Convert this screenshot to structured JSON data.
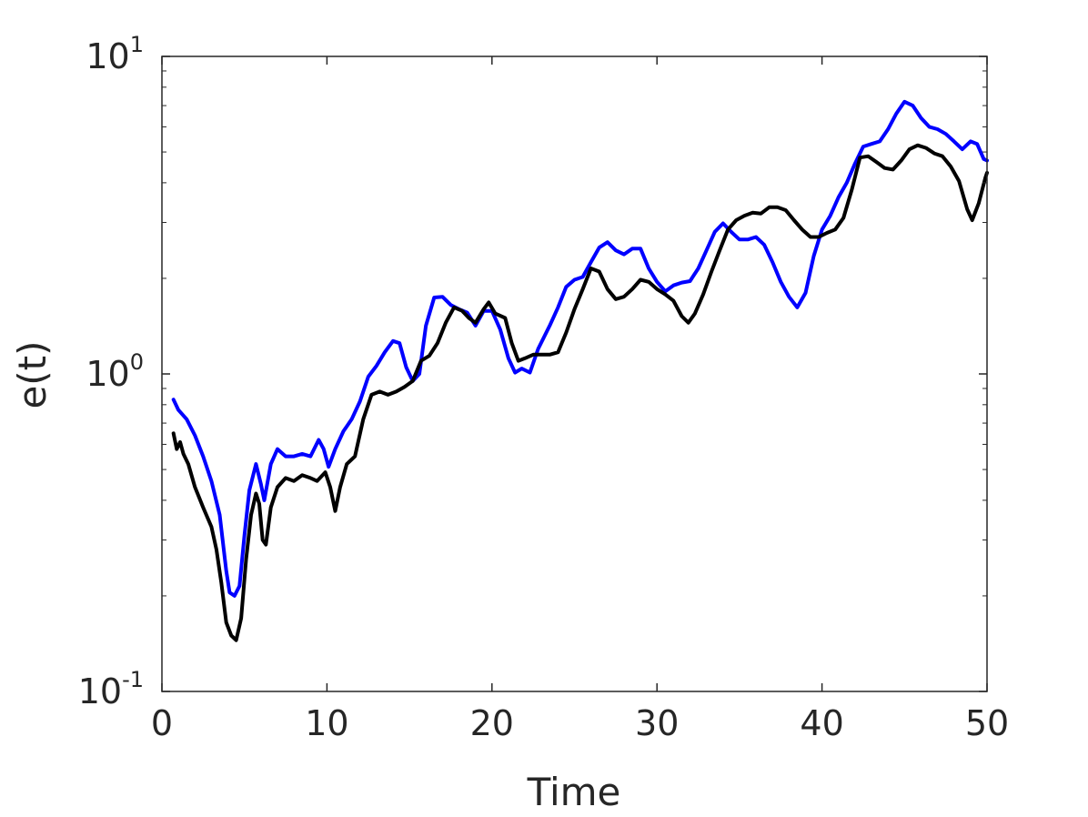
{
  "chart_data": {
    "type": "line",
    "title": "",
    "xlabel": "Time",
    "ylabel": "e(t)",
    "xlim": [
      0,
      50
    ],
    "ylim": [
      0.1,
      10
    ],
    "yscale": "log",
    "grid": false,
    "box": true,
    "x_ticks": [
      {
        "value": 0,
        "label": "0"
      },
      {
        "value": 10,
        "label": "10"
      },
      {
        "value": 20,
        "label": "20"
      },
      {
        "value": 30,
        "label": "30"
      },
      {
        "value": 40,
        "label": "40"
      },
      {
        "value": 50,
        "label": "50"
      }
    ],
    "y_ticks": [
      {
        "value": 0.1,
        "base": "10",
        "exp": "-1"
      },
      {
        "value": 1,
        "base": "10",
        "exp": "0"
      },
      {
        "value": 10,
        "base": "10",
        "exp": "1"
      }
    ],
    "series": [
      {
        "color": "#0000ff",
        "points": [
          [
            0.7,
            0.83
          ],
          [
            1.0,
            0.77
          ],
          [
            1.5,
            0.72
          ],
          [
            2.0,
            0.64
          ],
          [
            2.5,
            0.55
          ],
          [
            3.0,
            0.46
          ],
          [
            3.5,
            0.36
          ],
          [
            3.9,
            0.24
          ],
          [
            4.1,
            0.205
          ],
          [
            4.4,
            0.2
          ],
          [
            4.7,
            0.215
          ],
          [
            5.0,
            0.31
          ],
          [
            5.3,
            0.43
          ],
          [
            5.7,
            0.52
          ],
          [
            6.0,
            0.45
          ],
          [
            6.2,
            0.4
          ],
          [
            6.6,
            0.52
          ],
          [
            7.0,
            0.58
          ],
          [
            7.5,
            0.55
          ],
          [
            8.0,
            0.55
          ],
          [
            8.5,
            0.56
          ],
          [
            9.0,
            0.55
          ],
          [
            9.5,
            0.62
          ],
          [
            9.8,
            0.58
          ],
          [
            10.1,
            0.51
          ],
          [
            10.5,
            0.58
          ],
          [
            11.0,
            0.66
          ],
          [
            11.5,
            0.72
          ],
          [
            12.0,
            0.82
          ],
          [
            12.5,
            0.98
          ],
          [
            13.0,
            1.06
          ],
          [
            13.5,
            1.17
          ],
          [
            14.0,
            1.27
          ],
          [
            14.4,
            1.25
          ],
          [
            14.8,
            1.05
          ],
          [
            15.2,
            0.95
          ],
          [
            15.6,
            1.0
          ],
          [
            16.0,
            1.42
          ],
          [
            16.5,
            1.74
          ],
          [
            17.0,
            1.75
          ],
          [
            17.5,
            1.65
          ],
          [
            18.0,
            1.6
          ],
          [
            18.5,
            1.56
          ],
          [
            19.0,
            1.42
          ],
          [
            19.5,
            1.58
          ],
          [
            20.0,
            1.58
          ],
          [
            20.5,
            1.38
          ],
          [
            21.0,
            1.12
          ],
          [
            21.4,
            1.01
          ],
          [
            21.8,
            1.04
          ],
          [
            22.3,
            1.01
          ],
          [
            22.8,
            1.2
          ],
          [
            23.5,
            1.42
          ],
          [
            24.0,
            1.62
          ],
          [
            24.5,
            1.88
          ],
          [
            25.0,
            1.98
          ],
          [
            25.5,
            2.02
          ],
          [
            26.0,
            2.25
          ],
          [
            26.5,
            2.5
          ],
          [
            27.0,
            2.6
          ],
          [
            27.5,
            2.45
          ],
          [
            28.0,
            2.38
          ],
          [
            28.5,
            2.48
          ],
          [
            29.0,
            2.48
          ],
          [
            29.5,
            2.15
          ],
          [
            30.0,
            1.95
          ],
          [
            30.5,
            1.82
          ],
          [
            31.0,
            1.9
          ],
          [
            31.5,
            1.94
          ],
          [
            32.0,
            1.96
          ],
          [
            32.5,
            2.15
          ],
          [
            33.0,
            2.45
          ],
          [
            33.5,
            2.8
          ],
          [
            34.0,
            2.98
          ],
          [
            34.5,
            2.8
          ],
          [
            35.0,
            2.65
          ],
          [
            35.5,
            2.65
          ],
          [
            36.0,
            2.7
          ],
          [
            36.5,
            2.55
          ],
          [
            37.0,
            2.25
          ],
          [
            37.5,
            1.95
          ],
          [
            38.0,
            1.75
          ],
          [
            38.5,
            1.62
          ],
          [
            39.0,
            1.8
          ],
          [
            39.5,
            2.35
          ],
          [
            40.0,
            2.85
          ],
          [
            40.5,
            3.15
          ],
          [
            41.0,
            3.6
          ],
          [
            41.5,
            4.0
          ],
          [
            42.0,
            4.6
          ],
          [
            42.5,
            5.2
          ],
          [
            43.0,
            5.3
          ],
          [
            43.5,
            5.4
          ],
          [
            44.0,
            5.9
          ],
          [
            44.5,
            6.6
          ],
          [
            45.0,
            7.2
          ],
          [
            45.5,
            7.0
          ],
          [
            46.0,
            6.4
          ],
          [
            46.5,
            6.0
          ],
          [
            47.0,
            5.9
          ],
          [
            47.5,
            5.7
          ],
          [
            48.0,
            5.4
          ],
          [
            48.5,
            5.1
          ],
          [
            49.0,
            5.4
          ],
          [
            49.4,
            5.3
          ],
          [
            49.8,
            4.75
          ],
          [
            50.0,
            4.7
          ]
        ]
      },
      {
        "color": "#000000",
        "points": [
          [
            0.7,
            0.65
          ],
          [
            0.9,
            0.58
          ],
          [
            1.1,
            0.61
          ],
          [
            1.3,
            0.56
          ],
          [
            1.6,
            0.52
          ],
          [
            2.0,
            0.44
          ],
          [
            2.5,
            0.38
          ],
          [
            3.0,
            0.33
          ],
          [
            3.3,
            0.28
          ],
          [
            3.6,
            0.22
          ],
          [
            3.9,
            0.165
          ],
          [
            4.2,
            0.15
          ],
          [
            4.5,
            0.145
          ],
          [
            4.8,
            0.17
          ],
          [
            5.1,
            0.26
          ],
          [
            5.4,
            0.36
          ],
          [
            5.7,
            0.42
          ],
          [
            5.9,
            0.39
          ],
          [
            6.1,
            0.3
          ],
          [
            6.3,
            0.29
          ],
          [
            6.6,
            0.38
          ],
          [
            7.0,
            0.44
          ],
          [
            7.5,
            0.47
          ],
          [
            8.0,
            0.46
          ],
          [
            8.5,
            0.48
          ],
          [
            9.0,
            0.47
          ],
          [
            9.4,
            0.46
          ],
          [
            9.9,
            0.49
          ],
          [
            10.2,
            0.44
          ],
          [
            10.5,
            0.37
          ],
          [
            10.8,
            0.44
          ],
          [
            11.2,
            0.52
          ],
          [
            11.7,
            0.55
          ],
          [
            12.2,
            0.72
          ],
          [
            12.7,
            0.86
          ],
          [
            13.2,
            0.88
          ],
          [
            13.7,
            0.86
          ],
          [
            14.2,
            0.88
          ],
          [
            14.7,
            0.91
          ],
          [
            15.2,
            0.95
          ],
          [
            15.7,
            1.1
          ],
          [
            16.2,
            1.14
          ],
          [
            16.7,
            1.25
          ],
          [
            17.2,
            1.45
          ],
          [
            17.7,
            1.62
          ],
          [
            18.2,
            1.58
          ],
          [
            18.6,
            1.5
          ],
          [
            19.0,
            1.45
          ],
          [
            19.5,
            1.6
          ],
          [
            19.8,
            1.68
          ],
          [
            20.2,
            1.55
          ],
          [
            20.8,
            1.5
          ],
          [
            21.2,
            1.25
          ],
          [
            21.6,
            1.1
          ],
          [
            22.0,
            1.12
          ],
          [
            22.5,
            1.15
          ],
          [
            23.0,
            1.15
          ],
          [
            23.5,
            1.15
          ],
          [
            24.0,
            1.17
          ],
          [
            24.5,
            1.35
          ],
          [
            25.0,
            1.6
          ],
          [
            25.5,
            1.85
          ],
          [
            26.0,
            2.15
          ],
          [
            26.5,
            2.1
          ],
          [
            27.0,
            1.85
          ],
          [
            27.5,
            1.72
          ],
          [
            28.0,
            1.75
          ],
          [
            28.5,
            1.85
          ],
          [
            29.0,
            1.98
          ],
          [
            29.5,
            1.95
          ],
          [
            30.0,
            1.85
          ],
          [
            30.5,
            1.78
          ],
          [
            31.0,
            1.7
          ],
          [
            31.5,
            1.52
          ],
          [
            31.9,
            1.45
          ],
          [
            32.3,
            1.55
          ],
          [
            32.8,
            1.78
          ],
          [
            33.3,
            2.1
          ],
          [
            33.8,
            2.45
          ],
          [
            34.3,
            2.85
          ],
          [
            34.8,
            3.05
          ],
          [
            35.3,
            3.15
          ],
          [
            35.8,
            3.22
          ],
          [
            36.3,
            3.2
          ],
          [
            36.8,
            3.35
          ],
          [
            37.3,
            3.35
          ],
          [
            37.8,
            3.28
          ],
          [
            38.3,
            3.05
          ],
          [
            38.8,
            2.85
          ],
          [
            39.3,
            2.7
          ],
          [
            39.8,
            2.7
          ],
          [
            40.3,
            2.78
          ],
          [
            40.8,
            2.85
          ],
          [
            41.3,
            3.1
          ],
          [
            41.8,
            3.8
          ],
          [
            42.3,
            4.8
          ],
          [
            42.8,
            4.85
          ],
          [
            43.3,
            4.65
          ],
          [
            43.8,
            4.45
          ],
          [
            44.3,
            4.4
          ],
          [
            44.8,
            4.7
          ],
          [
            45.3,
            5.1
          ],
          [
            45.8,
            5.25
          ],
          [
            46.3,
            5.15
          ],
          [
            46.8,
            4.95
          ],
          [
            47.3,
            4.85
          ],
          [
            47.8,
            4.5
          ],
          [
            48.3,
            4.05
          ],
          [
            48.8,
            3.3
          ],
          [
            49.1,
            3.05
          ],
          [
            49.5,
            3.45
          ],
          [
            49.9,
            4.15
          ],
          [
            50.0,
            4.3
          ]
        ]
      }
    ]
  }
}
